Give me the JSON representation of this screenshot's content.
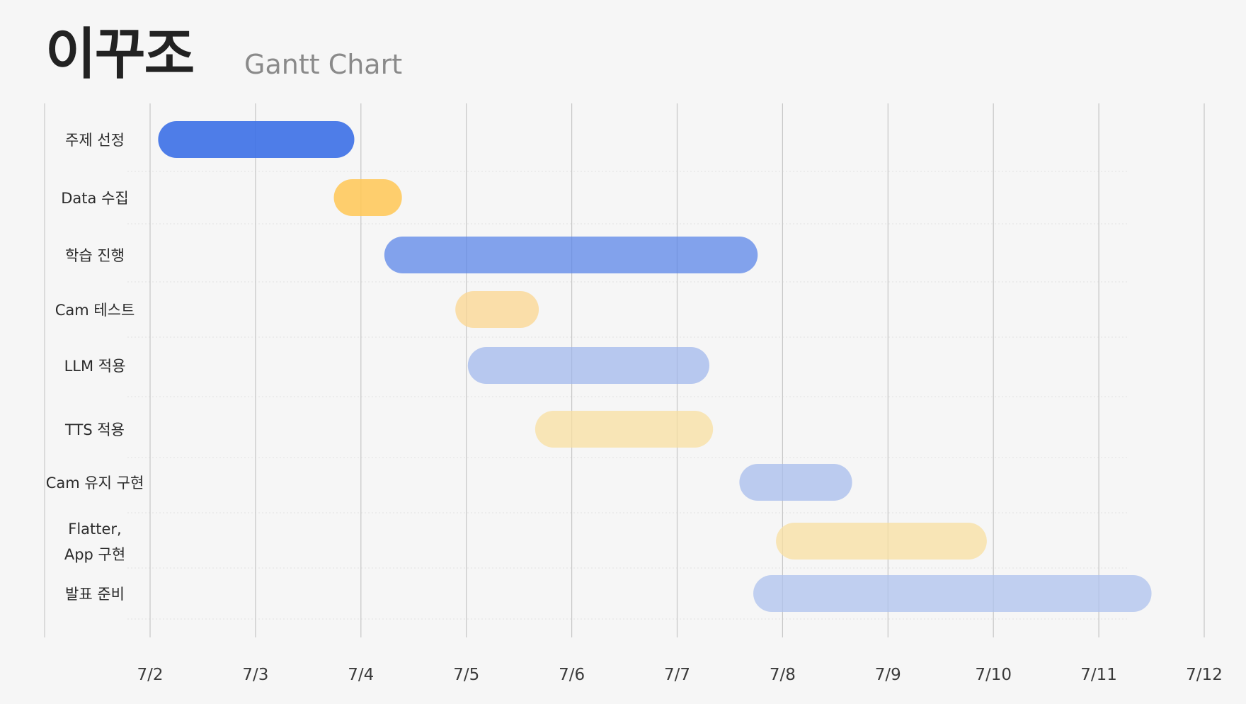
{
  "chart_data": {
    "type": "gantt",
    "title": "이꾸조",
    "subtitle": "Gantt Chart",
    "x_ticks": [
      "7/2",
      "7/3",
      "7/4",
      "7/5",
      "7/6",
      "7/7",
      "7/8",
      "7/9",
      "7/10",
      "7/11",
      "7/12"
    ],
    "xlim": [
      "7/2",
      "7/12"
    ],
    "grid": true,
    "tasks": [
      {
        "label": "주제 선정",
        "start": "7/2 01:50",
        "end": "7/3 22:30",
        "color": "#3f72e6",
        "opacity": 0.92
      },
      {
        "label": "Data 수집",
        "start": "7/3 17:50",
        "end": "7/4 09:20",
        "color": "#ffc85a",
        "opacity": 0.88
      },
      {
        "label": "학습 진행",
        "start": "7/4 05:20",
        "end": "7/7 18:20",
        "color": "#5b86e8",
        "opacity": 0.75
      },
      {
        "label": "Cam 테스트",
        "start": "7/4 21:30",
        "end": "7/5 16:30",
        "color": "#fbd68f",
        "opacity": 0.75
      },
      {
        "label": "LLM 적용",
        "start": "7/5 00:20",
        "end": "7/7 07:20",
        "color": "#9eb6ec",
        "opacity": 0.72
      },
      {
        "label": "TTS 적용",
        "start": "7/5 15:40",
        "end": "7/7 08:10",
        "color": "#f8dfa0",
        "opacity": 0.75
      },
      {
        "label": "Cam 유지 구현",
        "start": "7/7 14:10",
        "end": "7/8 15:50",
        "color": "#a7bcec",
        "opacity": 0.75
      },
      {
        "label": "Flatter,\nApp 구현",
        "start": "7/7 22:30",
        "end": "7/9 22:30",
        "color": "#f8dfa0",
        "opacity": 0.75
      },
      {
        "label": "발표 준비",
        "start": "7/7 17:20",
        "end": "7/11 12:00",
        "color": "#aec2ee",
        "opacity": 0.75
      }
    ]
  }
}
